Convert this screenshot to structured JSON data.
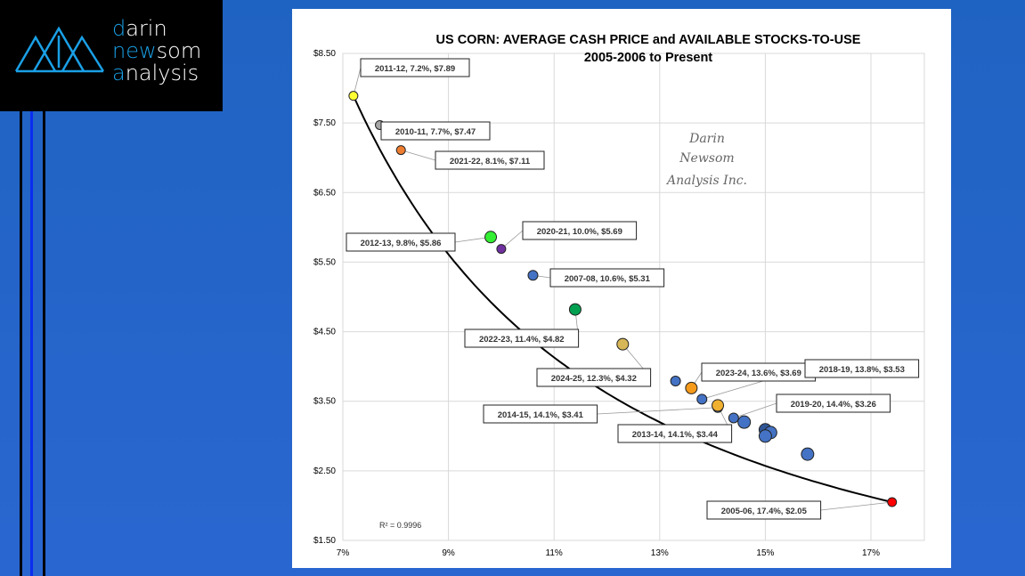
{
  "logo": {
    "line1_first": "d",
    "line1_rest": "arin",
    "line2_first": "n",
    "line2_mid": "ew",
    "line2_rest": "som",
    "line3_first": "a",
    "line3_rest": "nalysis",
    "full": "darin newsom analysis"
  },
  "chart_data": {
    "type": "scatter",
    "title": "US CORN: AVERAGE CASH PRICE and AVAILABLE STOCKS-TO-USE",
    "subtitle": "2005-2006 to Present",
    "xlabel": "",
    "ylabel": "",
    "xlim": [
      7,
      18
    ],
    "ylim": [
      1.5,
      8.5
    ],
    "x_ticks": [
      7,
      9,
      11,
      13,
      15,
      17
    ],
    "x_tick_labels": [
      "7%",
      "9%",
      "11%",
      "13%",
      "15%",
      "17%"
    ],
    "y_ticks": [
      1.5,
      2.5,
      3.5,
      4.5,
      5.5,
      6.5,
      7.5,
      8.5
    ],
    "y_tick_labels": [
      "$1.50",
      "$2.50",
      "$3.50",
      "$4.50",
      "$5.50",
      "$6.50",
      "$7.50",
      "$8.50"
    ],
    "grid": true,
    "watermark": [
      "Darin",
      "Newsom",
      "Analysis Inc."
    ],
    "r_squared": "R² = 0.9996",
    "trendline": "power",
    "points": [
      {
        "x": 7.2,
        "y": 7.89,
        "label": "2011-12, 7.2%, $7.89",
        "color": "#ffff33"
      },
      {
        "x": 7.7,
        "y": 7.47,
        "label": "2010-11, 7.7%, $7.47",
        "color": "#a6a6a6"
      },
      {
        "x": 8.1,
        "y": 7.11,
        "label": "2021-22, 8.1%, $7.11",
        "color": "#ed7d31"
      },
      {
        "x": 9.8,
        "y": 5.86,
        "label": "2012-13, 9.8%, $5.86",
        "color": "#33ee33"
      },
      {
        "x": 10.0,
        "y": 5.69,
        "label": "2020-21, 10.0%, $5.69",
        "color": "#7030a0"
      },
      {
        "x": 10.6,
        "y": 5.31,
        "label": "2007-08, 10.6%, $5.31",
        "color": "#4472c4"
      },
      {
        "x": 11.4,
        "y": 4.82,
        "label": "2022-23, 11.4%, $4.82",
        "color": "#00a050"
      },
      {
        "x": 12.3,
        "y": 4.32,
        "label": "2024-25, 12.3%, $4.32",
        "color": "#d6b656"
      },
      {
        "x": 13.3,
        "y": 3.79,
        "label": "",
        "color": "#4472c4"
      },
      {
        "x": 13.6,
        "y": 3.69,
        "label": "2023-24, 13.6%, $3.69",
        "color": "#f59a1b"
      },
      {
        "x": 13.8,
        "y": 3.53,
        "label": "2018-19, 13.8%, $3.53",
        "color": "#4472c4"
      },
      {
        "x": 14.1,
        "y": 3.41,
        "label": "2014-15, 14.1%, $3.41",
        "color": "#4472c4"
      },
      {
        "x": 14.1,
        "y": 3.44,
        "label": "2013-14, 14.1%, $3.44",
        "color": "#f0b030"
      },
      {
        "x": 14.4,
        "y": 3.26,
        "label": "2019-20, 14.4%, $3.26",
        "color": "#4472c4"
      },
      {
        "x": 14.6,
        "y": 3.2,
        "label": "",
        "color": "#4472c4"
      },
      {
        "x": 15.0,
        "y": 3.09,
        "label": "",
        "color": "#2f5597"
      },
      {
        "x": 15.1,
        "y": 3.05,
        "label": "",
        "color": "#4472c4"
      },
      {
        "x": 15.0,
        "y": 3.0,
        "label": "",
        "color": "#4472c4"
      },
      {
        "x": 15.8,
        "y": 2.74,
        "label": "",
        "color": "#4472c4"
      },
      {
        "x": 17.4,
        "y": 2.05,
        "label": "2005-06, 17.4%, $2.05",
        "color": "#ff0000"
      }
    ]
  }
}
